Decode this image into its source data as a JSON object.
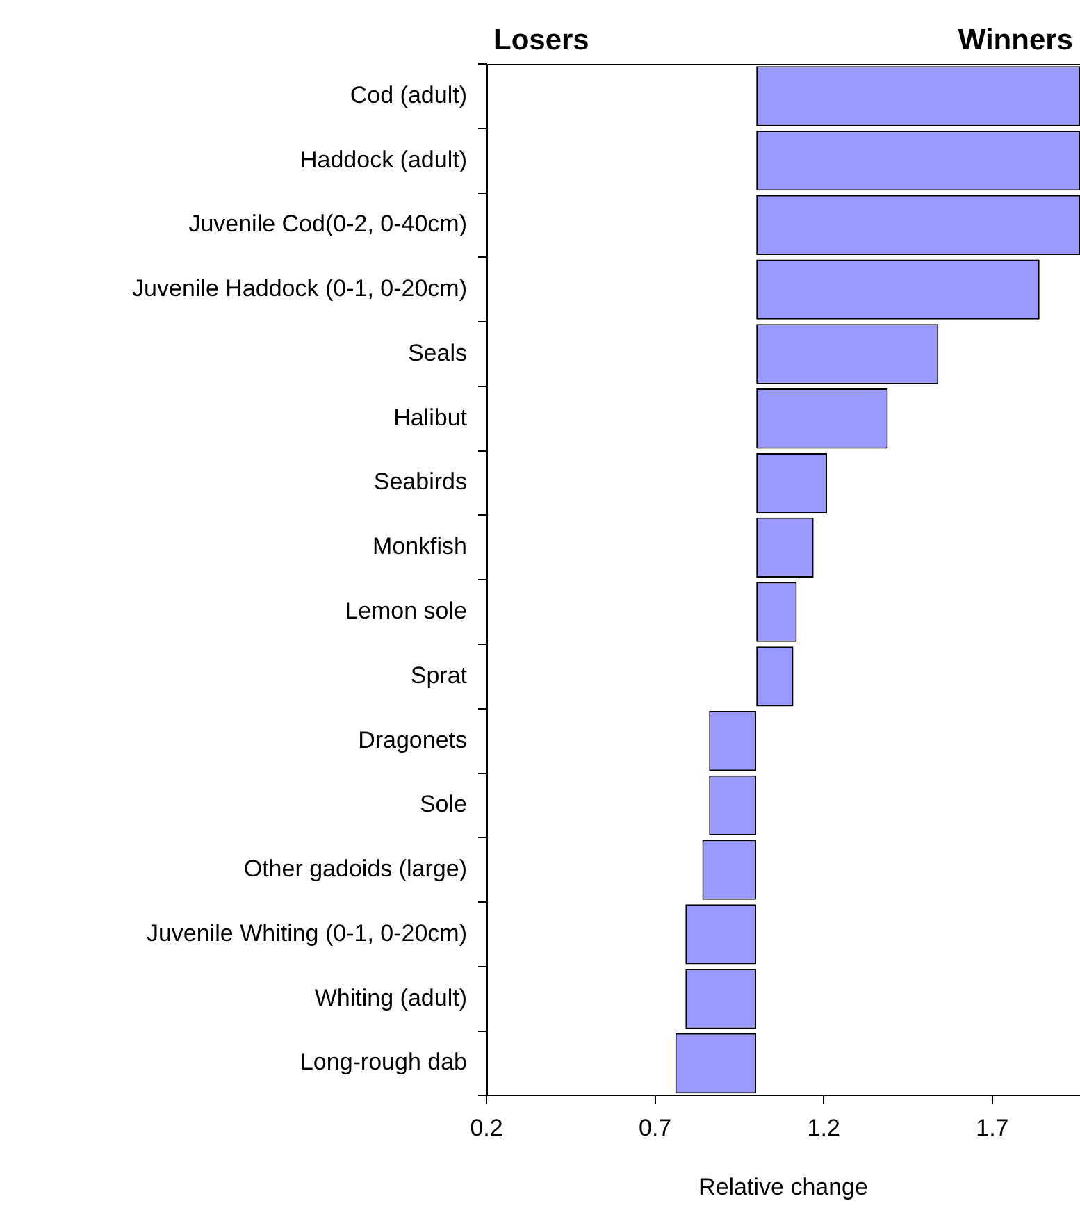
{
  "chart_data": {
    "type": "bar",
    "orientation": "horizontal",
    "xlabel": "Relative change",
    "annotations": [
      "Losers",
      "Winners"
    ],
    "categories": [
      "Cod (adult)",
      "Haddock (adult)",
      "Juvenile Cod(0-2, 0-40cm)",
      "Juvenile Haddock (0-1, 0-20cm)",
      "Seals",
      "Halibut",
      "Seabirds",
      "Monkfish",
      "Lemon sole",
      "Sprat",
      "Dragonets",
      "Sole",
      "Other gadoids (large)",
      "Juvenile Whiting (0-1, 0-20cm)",
      "Whiting (adult)",
      "Long-rough dab"
    ],
    "base": [
      1,
      1,
      1,
      1,
      1,
      1,
      1,
      1,
      1,
      1,
      1,
      1,
      1,
      1,
      1,
      1
    ],
    "values": [
      0.96,
      0.96,
      0.96,
      0.84,
      0.54,
      0.39,
      0.21,
      0.17,
      0.12,
      0.11,
      -0.14,
      -0.14,
      -0.16,
      -0.21,
      -0.21,
      -0.24
    ],
    "color": "#9999ff",
    "xlim": [
      0.2,
      1.96
    ],
    "xticks": [
      0.2,
      0.7,
      1.2,
      1.7
    ],
    "grid": false,
    "legend": false
  }
}
